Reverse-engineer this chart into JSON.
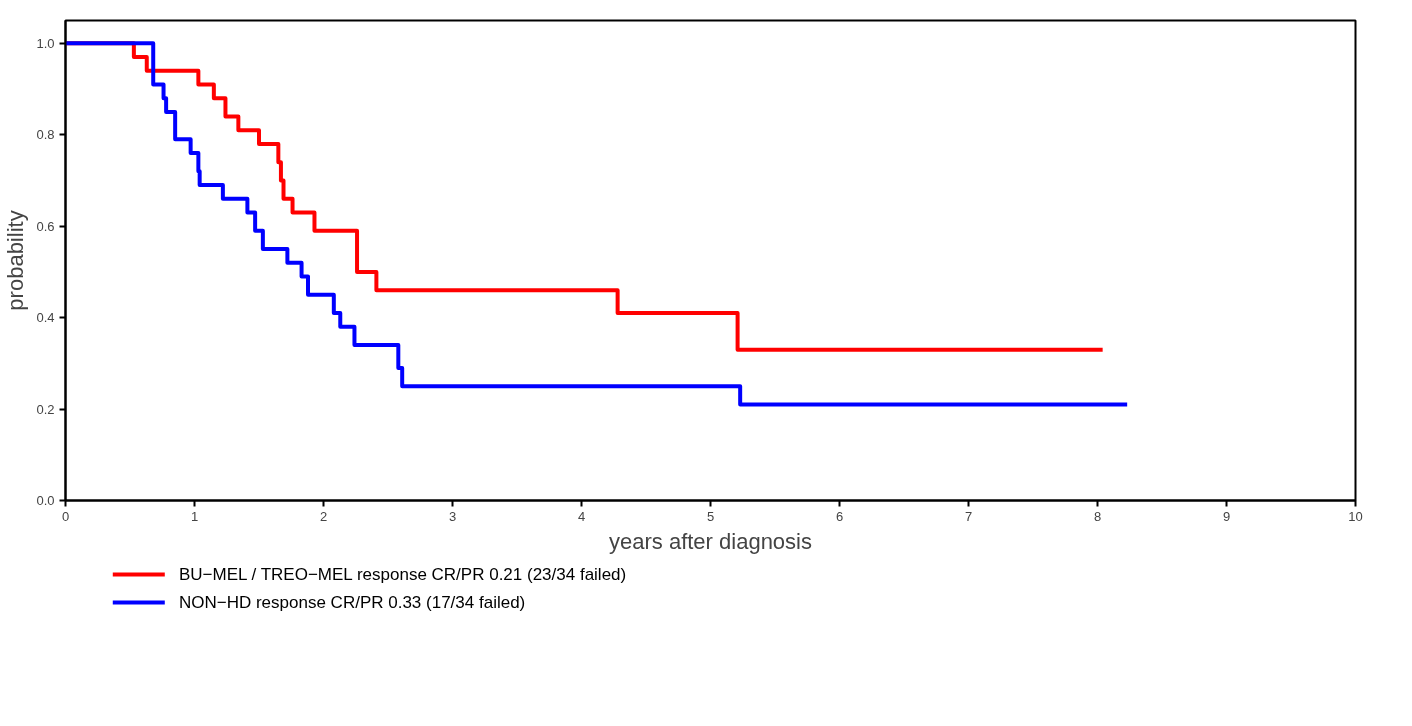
{
  "chart_data": {
    "type": "step",
    "xlabel": "years after diagnosis",
    "ylabel": "probability",
    "xlim": [
      0,
      10
    ],
    "ylim": [
      0,
      1.05
    ],
    "xticks": [
      0,
      1,
      2,
      3,
      4,
      5,
      6,
      7,
      8,
      9,
      10
    ],
    "yticks": [
      {
        "value": 0,
        "label": "0.0"
      },
      {
        "value": 0.2,
        "label": "0.2"
      },
      {
        "value": 0.4,
        "label": "0.4"
      },
      {
        "value": 0.6,
        "label": "0.6"
      },
      {
        "value": 0.8,
        "label": "0.8"
      },
      {
        "value": 1,
        "label": "1.0"
      }
    ],
    "grid": false,
    "legend": "bottom left",
    "line_style": "solid",
    "marker": "none",
    "series": [
      {
        "name": "BU−MEL / TREO−MEL response CR/PR 0.21 (23/34 failed)",
        "color": "#ff0000",
        "x": [
          0,
          0.53,
          0.63,
          1.03,
          1.15,
          1.24,
          1.34,
          1.5,
          1.65,
          1.67,
          1.69,
          1.76,
          1.93,
          2.26,
          2.41,
          4.28,
          5.21,
          8.04
        ],
        "values": [
          1,
          0.97,
          0.94,
          0.91,
          0.88,
          0.84,
          0.81,
          0.78,
          0.74,
          0.7,
          0.66,
          0.63,
          0.59,
          0.5,
          0.46,
          0.41,
          0.33,
          0.33
        ]
      },
      {
        "name": "NON−HD response CR/PR 0.33 (17/34 failed)",
        "color": "#0000ff",
        "x": [
          0,
          0.68,
          0.76,
          0.78,
          0.85,
          0.97,
          1.03,
          1.04,
          1.22,
          1.41,
          1.47,
          1.53,
          1.72,
          1.83,
          1.88,
          2.08,
          2.13,
          2.24,
          2.58,
          2.61,
          5.23,
          8.23
        ],
        "values": [
          1,
          0.91,
          0.88,
          0.85,
          0.79,
          0.76,
          0.72,
          0.69,
          0.66,
          0.63,
          0.59,
          0.55,
          0.52,
          0.49,
          0.45,
          0.41,
          0.38,
          0.34,
          0.29,
          0.25,
          0.21,
          0.21
        ]
      }
    ]
  }
}
